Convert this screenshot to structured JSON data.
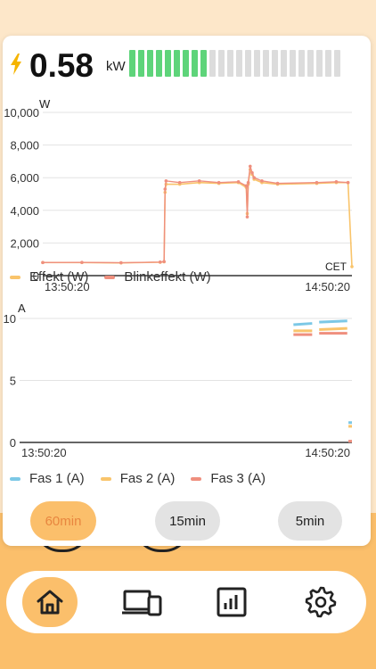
{
  "header": {
    "power_value": "0.58",
    "power_unit": "kW",
    "level": {
      "filled": 9,
      "total": 24
    },
    "colors": {
      "filled": "#5ed47a",
      "empty": "#dcdcdc",
      "bolt": "#f5b400"
    }
  },
  "chart_power": {
    "unit": "W",
    "timezone": "CET",
    "y_ticks": [
      "10,000",
      "8,000",
      "6,000",
      "4,000",
      "2,000",
      "0"
    ],
    "x_ticks": [
      "13:50:20",
      "14:50:20"
    ]
  },
  "legend_power": [
    {
      "label": "Effekt (W)",
      "color": "#f9c46b"
    },
    {
      "label": "Blinkeffekt (W)",
      "color": "#ef8f7e"
    }
  ],
  "chart_current": {
    "unit": "A",
    "y_ticks": [
      "10",
      "5",
      "0"
    ],
    "x_ticks": [
      "13:50:20",
      "14:50:20"
    ]
  },
  "legend_current": [
    {
      "label": "Fas 1 (A)",
      "color": "#7cc8e6"
    },
    {
      "label": "Fas 2 (A)",
      "color": "#f9c46b"
    },
    {
      "label": "Fas 3 (A)",
      "color": "#ef8f7e"
    }
  ],
  "time_buttons": [
    {
      "label": "60min",
      "active": true
    },
    {
      "label": "15min",
      "active": false
    },
    {
      "label": "5min",
      "active": false
    }
  ],
  "nav": {
    "items": [
      {
        "icon": "home-icon",
        "active": true
      },
      {
        "icon": "devices-icon",
        "active": false
      },
      {
        "icon": "chart-icon",
        "active": false
      },
      {
        "icon": "gear-icon",
        "active": false
      }
    ],
    "active_color": "#fbbf6b"
  },
  "chart_data": [
    {
      "type": "line",
      "ylabel": "W",
      "ylim": [
        0,
        10000
      ],
      "x_range": [
        "13:50:20",
        "14:50:20"
      ],
      "grid": true,
      "series": [
        {
          "name": "Effekt (W)",
          "color": "#f9c46b",
          "x": [
            0,
            20,
            40,
            60,
            62,
            62.5,
            63,
            70,
            80,
            90,
            100,
            104,
            104.5,
            105,
            106,
            107,
            108,
            112,
            120,
            140,
            150,
            156,
            158
          ],
          "y": [
            800,
            800,
            780,
            820,
            850,
            5100,
            5600,
            5600,
            5700,
            5650,
            5700,
            5400,
            3800,
            5600,
            6500,
            6200,
            5900,
            5700,
            5600,
            5650,
            5700,
            5700,
            550
          ]
        },
        {
          "name": "Blinkeffekt (W)",
          "color": "#ef8f7e",
          "x": [
            0,
            20,
            40,
            60,
            62,
            62.5,
            63,
            70,
            80,
            90,
            100,
            104,
            104.5,
            105,
            106,
            107,
            108,
            112,
            120,
            140,
            150,
            156
          ],
          "y": [
            800,
            810,
            790,
            830,
            860,
            5300,
            5800,
            5700,
            5800,
            5700,
            5750,
            5500,
            3600,
            5700,
            6700,
            6300,
            6000,
            5800,
            5650,
            5700,
            5750,
            5700
          ]
        }
      ]
    },
    {
      "type": "line",
      "ylabel": "A",
      "ylim": [
        0,
        10
      ],
      "x_range": [
        "13:50:20",
        "14:50:20"
      ],
      "grid": true,
      "series": [
        {
          "name": "Fas 1 (A)",
          "color": "#7cc8e6",
          "segments": [
            {
              "x": [
                117,
                125
              ],
              "y": [
                9.5,
                9.6
              ]
            },
            {
              "x": [
                128,
                140
              ],
              "y": [
                9.7,
                9.8
              ]
            },
            {
              "x": [
                140.5,
                142
              ],
              "y": [
                1.6,
                1.6
              ]
            }
          ]
        },
        {
          "name": "Fas 2 (A)",
          "color": "#f9c46b",
          "segments": [
            {
              "x": [
                117,
                125
              ],
              "y": [
                9.0,
                9.0
              ]
            },
            {
              "x": [
                128,
                140
              ],
              "y": [
                9.1,
                9.2
              ]
            },
            {
              "x": [
                140.5,
                142
              ],
              "y": [
                1.3,
                1.3
              ]
            }
          ]
        },
        {
          "name": "Fas 3 (A)",
          "color": "#ef8f7e",
          "segments": [
            {
              "x": [
                117,
                125
              ],
              "y": [
                8.7,
                8.7
              ]
            },
            {
              "x": [
                128,
                140
              ],
              "y": [
                8.8,
                8.8
              ]
            },
            {
              "x": [
                140.5,
                142
              ],
              "y": [
                0.1,
                0.1
              ]
            }
          ]
        }
      ]
    }
  ]
}
